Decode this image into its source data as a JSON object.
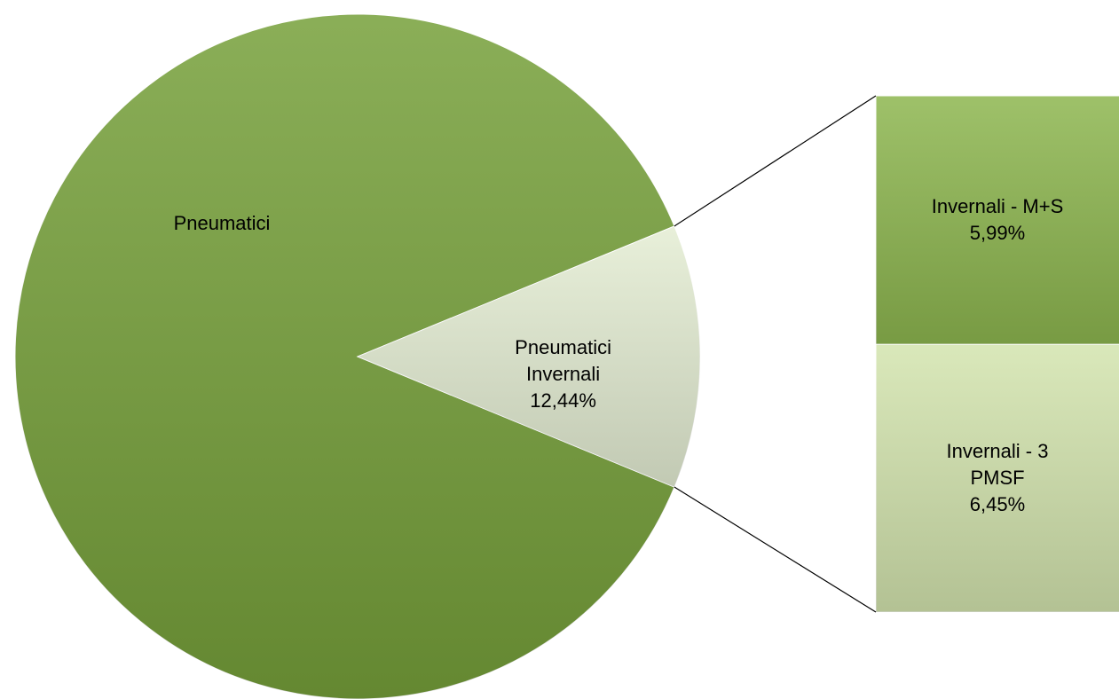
{
  "chart_data": {
    "type": "pie-of-bar",
    "categories": [
      "Pneumatici",
      "Pneumatici Invernali"
    ],
    "values": [
      87.56,
      12.44
    ],
    "value_labels": [
      null,
      "12,44%"
    ],
    "colors": [
      "#76a03a",
      "#e4edd3"
    ],
    "breakdown": {
      "categories": [
        "Invernali - M+S",
        "Invernali - 3 PMSF"
      ],
      "values": [
        5.99,
        6.45
      ],
      "value_labels": [
        "5,99%",
        "6,45%"
      ],
      "colors": [
        "#8db64f",
        "#d3e4ae"
      ]
    }
  }
}
